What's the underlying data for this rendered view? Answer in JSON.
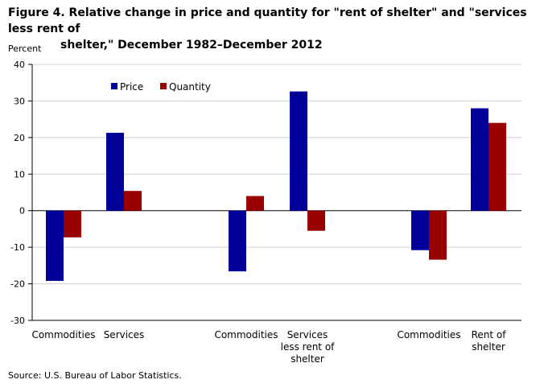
{
  "figure": {
    "title_line1": "Figure 4. Relative change in price and quantity for \"rent of shelter\" and \"services less rent of",
    "title_line2": "shelter,\" December 1982–December 2012",
    "source": "Source: U.S. Bureau of Labor Statistics."
  },
  "chart_data": {
    "type": "bar",
    "ylabel": "Percent",
    "ylim": [
      -30,
      40
    ],
    "yticks": [
      40,
      30,
      20,
      10,
      0,
      -10,
      -20,
      -30
    ],
    "grid": true,
    "legend_position": "top-left",
    "categories": [
      [
        "Commodities"
      ],
      [
        "Services"
      ],
      [
        "Commodities"
      ],
      [
        "Services",
        "less rent of",
        "shelter"
      ],
      [
        "Commodities"
      ],
      [
        "Rent of",
        "shelter"
      ]
    ],
    "series": [
      {
        "name": "Price",
        "color": "#000099",
        "values": [
          -19.2,
          21.3,
          -16.6,
          32.6,
          -10.8,
          28.0
        ]
      },
      {
        "name": "Quantity",
        "color": "#990000",
        "values": [
          -7.3,
          5.4,
          4.0,
          -5.5,
          -13.4,
          24.0
        ]
      }
    ]
  }
}
